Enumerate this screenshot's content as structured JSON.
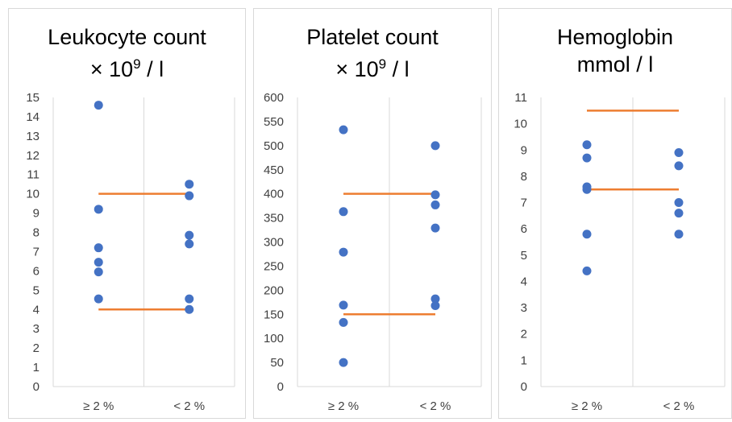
{
  "colors": {
    "point": "#4472c4",
    "range_line": "#ed7d31",
    "grid": "#d9d9d9",
    "axis_text": "#404040"
  },
  "chart_data": [
    {
      "type": "scatter",
      "title_line1": "Leukocyte count",
      "title_prefix": "× 10",
      "title_sup": "9",
      "title_suffix": " / l",
      "categories": [
        "≥ 2 %",
        "< 2 %"
      ],
      "ylim": [
        0,
        15
      ],
      "ytick_step": 1,
      "points": [
        {
          "category": "≥ 2 %",
          "values": [
            14.6,
            9.2,
            7.2,
            6.45,
            5.95,
            4.55
          ]
        },
        {
          "category": "< 2 %",
          "values": [
            10.5,
            9.9,
            7.85,
            7.4,
            4.55,
            4.0
          ]
        }
      ],
      "reference_lines": [
        10,
        4
      ]
    },
    {
      "type": "scatter",
      "title_line1": "Platelet count",
      "title_prefix": "× 10",
      "title_sup": "9",
      "title_suffix": " / l",
      "categories": [
        "≥ 2 %",
        "< 2 %"
      ],
      "ylim": [
        0,
        600
      ],
      "ytick_step": 50,
      "points": [
        {
          "category": "≥ 2 %",
          "values": [
            533,
            363,
            279,
            169,
            133,
            50
          ]
        },
        {
          "category": "< 2 %",
          "values": [
            500,
            398,
            377,
            329,
            182,
            168
          ]
        }
      ],
      "reference_lines": [
        400,
        150
      ]
    },
    {
      "type": "scatter",
      "title_line1": "Hemoglobin",
      "title_line2": "mmol / l",
      "categories": [
        "≥ 2 %",
        "< 2 %"
      ],
      "ylim": [
        0,
        11
      ],
      "ytick_step": 1,
      "points": [
        {
          "category": "≥ 2 %",
          "values": [
            9.2,
            8.7,
            7.6,
            7.5,
            5.8,
            4.4
          ]
        },
        {
          "category": "< 2 %",
          "values": [
            8.9,
            8.4,
            7.0,
            6.6,
            5.8
          ]
        }
      ],
      "reference_lines": [
        10.5,
        7.5
      ]
    }
  ]
}
